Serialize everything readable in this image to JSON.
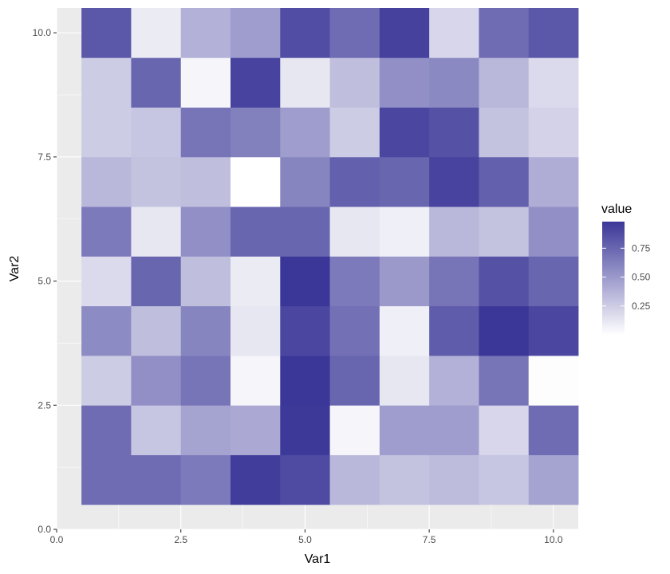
{
  "chart_data": {
    "type": "heatmap",
    "title": "",
    "xlabel": "Var1",
    "ylabel": "Var2",
    "xlim": [
      0,
      10.5
    ],
    "ylim": [
      0,
      10.5
    ],
    "x_ticks": [
      0,
      2.5,
      5,
      7.5,
      10
    ],
    "y_ticks": [
      0,
      2.5,
      5,
      7.5,
      10
    ],
    "x_tick_labels": [
      "0.0",
      "2.5",
      "5.0",
      "7.5",
      "10.0"
    ],
    "y_tick_labels": [
      "0.0",
      "2.5",
      "5.0",
      "7.5",
      "10.0"
    ],
    "x": [
      1,
      2,
      3,
      4,
      5,
      6,
      7,
      8,
      9,
      10
    ],
    "y": [
      1,
      2,
      3,
      4,
      5,
      6,
      7,
      8,
      9,
      10
    ],
    "values_by_row_y1_to_y10": [
      [
        0.72,
        0.72,
        0.65,
        0.95,
        0.88,
        0.35,
        0.3,
        0.33,
        0.28,
        0.45
      ],
      [
        0.72,
        0.28,
        0.45,
        0.42,
        0.97,
        0.05,
        0.48,
        0.48,
        0.2,
        0.72
      ],
      [
        0.25,
        0.55,
        0.68,
        0.05,
        0.98,
        0.75,
        0.12,
        0.38,
        0.68,
        0.01
      ],
      [
        0.57,
        0.32,
        0.6,
        0.12,
        0.9,
        0.7,
        0.08,
        0.8,
        0.98,
        0.9
      ],
      [
        0.18,
        0.75,
        0.32,
        0.1,
        0.98,
        0.65,
        0.5,
        0.68,
        0.85,
        0.75
      ],
      [
        0.65,
        0.12,
        0.55,
        0.75,
        0.75,
        0.12,
        0.08,
        0.35,
        0.3,
        0.55
      ],
      [
        0.35,
        0.3,
        0.32,
        0.0,
        0.6,
        0.78,
        0.75,
        0.92,
        0.78,
        0.4
      ],
      [
        0.25,
        0.28,
        0.68,
        0.62,
        0.48,
        0.25,
        0.9,
        0.85,
        0.3,
        0.22
      ],
      [
        0.25,
        0.75,
        0.05,
        0.92,
        0.12,
        0.32,
        0.55,
        0.58,
        0.35,
        0.18
      ],
      [
        0.82,
        0.1,
        0.38,
        0.48,
        0.87,
        0.72,
        0.93,
        0.2,
        0.72,
        0.82
      ]
    ],
    "legend": {
      "title": "value",
      "breaks": [
        0.25,
        0.5,
        0.75
      ],
      "labels": [
        "0.25",
        "0.50",
        "0.75"
      ],
      "range": [
        0,
        0.98
      ],
      "placement": "right"
    },
    "colors": {
      "low": "#ffffff",
      "high": "#3b3798",
      "panel_background": "#ebebeb",
      "grid": "#ffffff"
    },
    "grid": true
  }
}
